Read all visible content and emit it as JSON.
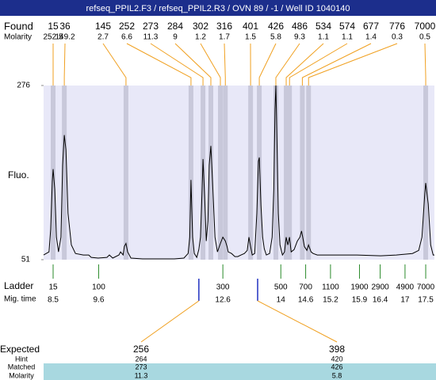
{
  "header": {
    "title": "refseq_PPIL2.F3 / refseq_PPIL2.R3 / OVN 89 / -1 / Well ID 1040140"
  },
  "chart_data": {
    "type": "electropherogram",
    "ylabel": "Fluo.",
    "ylim": [
      51,
      276
    ],
    "yticks": [
      51,
      276
    ],
    "xlim": [
      8.27,
      17.71
    ],
    "trace": {
      "x": [
        8.27,
        8.4,
        8.44,
        8.48,
        8.5,
        8.54,
        8.58,
        8.63,
        8.69,
        8.73,
        8.77,
        8.81,
        8.86,
        8.94,
        9.04,
        9.23,
        9.36,
        9.42,
        9.59,
        9.8,
        9.86,
        9.94,
        10.09,
        10.13,
        10.19,
        10.22,
        10.26,
        10.3,
        10.38,
        10.66,
        11.05,
        11.43,
        11.66,
        11.76,
        11.8,
        11.83,
        11.87,
        11.91,
        11.97,
        12.02,
        12.06,
        12.1,
        12.12,
        12.16,
        12.2,
        12.24,
        12.27,
        12.31,
        12.35,
        12.41,
        12.47,
        12.54,
        12.6,
        12.66,
        12.7,
        12.73,
        12.81,
        12.89,
        12.96,
        13.04,
        13.12,
        13.19,
        13.23,
        13.27,
        13.31,
        13.37,
        13.42,
        13.46,
        13.48,
        13.52,
        13.56,
        13.6,
        13.65,
        13.73,
        13.79,
        13.83,
        13.86,
        13.88,
        13.9,
        13.94,
        13.98,
        14.04,
        14.09,
        14.13,
        14.17,
        14.21,
        14.25,
        14.32,
        14.4,
        14.46,
        14.5,
        14.53,
        14.57,
        14.63,
        14.67,
        14.73,
        14.78,
        14.88,
        15.26,
        15.84,
        16.41,
        16.79,
        17.18,
        17.33,
        17.41,
        17.47,
        17.5,
        17.56,
        17.62,
        17.68,
        17.71
      ],
      "y": [
        57,
        61,
        90,
        152,
        168,
        142,
        80,
        61,
        80,
        173,
        212,
        193,
        111,
        70,
        59,
        57,
        57,
        54,
        53,
        54,
        57,
        53,
        57,
        61,
        57,
        68,
        72,
        61,
        53,
        52,
        52,
        52,
        53,
        59,
        80,
        154,
        80,
        59,
        54,
        64,
        80,
        142,
        181,
        131,
        75,
        101,
        173,
        198,
        152,
        80,
        61,
        72,
        80,
        75,
        68,
        61,
        59,
        55,
        55,
        57,
        59,
        63,
        80,
        68,
        57,
        59,
        111,
        178,
        183,
        121,
        80,
        65,
        57,
        59,
        80,
        142,
        245,
        276,
        224,
        111,
        70,
        57,
        61,
        80,
        70,
        80,
        61,
        64,
        75,
        80,
        88,
        80,
        68,
        63,
        70,
        61,
        59,
        57,
        57,
        57,
        56,
        57,
        59,
        63,
        80,
        131,
        150,
        123,
        70,
        57,
        57
      ]
    },
    "found": {
      "label": "Found",
      "molarity_label": "Molarity",
      "peaks": [
        {
          "size": 15,
          "molarity": 252.5,
          "time": 8.5
        },
        {
          "size": 36,
          "molarity": 149.2,
          "time": 8.77
        },
        {
          "size": 145,
          "molarity": 2.7,
          "time": 10.26
        },
        {
          "size": 252,
          "molarity": 6.6,
          "time": 11.83
        },
        {
          "size": 273,
          "molarity": 11.3,
          "time": 12.12
        },
        {
          "size": 284,
          "molarity": 9,
          "time": 12.31
        },
        {
          "size": 302,
          "molarity": 1.2,
          "time": 12.54
        },
        {
          "size": 316,
          "molarity": 1.7,
          "time": 12.66
        },
        {
          "size": 401,
          "molarity": 1.5,
          "time": 13.27
        },
        {
          "size": 426,
          "molarity": 5.8,
          "time": 13.48
        },
        {
          "size": 486,
          "molarity": 9.3,
          "time": 13.88
        },
        {
          "size": 534,
          "molarity": 1.1,
          "time": 14.13
        },
        {
          "size": 574,
          "molarity": 1.1,
          "time": 14.21
        },
        {
          "size": 677,
          "molarity": 1.4,
          "time": 14.52
        },
        {
          "size": 776,
          "molarity": 0.3,
          "time": 14.67
        },
        {
          "size": 7000,
          "molarity": 0.5,
          "time": 17.5
        }
      ]
    },
    "ladder": {
      "label": "Ladder",
      "time_label": "Mig. time",
      "sizes": [
        15,
        100,
        300,
        500,
        700,
        1100,
        1900,
        2900,
        4900,
        7000
      ],
      "times": [
        8.5,
        9.6,
        12.6,
        14,
        14.6,
        15.2,
        15.9,
        16.4,
        17,
        17.5
      ]
    },
    "expected": {
      "labels": [
        "Expected",
        "Hint",
        "Matched",
        "Molarity"
      ],
      "items": [
        {
          "expected": 256,
          "hint": 264,
          "matched": 273,
          "molarity": 11.3,
          "time": 12.02
        },
        {
          "expected": 398,
          "hint": 420,
          "matched": 426,
          "molarity": 5.8,
          "time": 13.44
        }
      ]
    }
  }
}
